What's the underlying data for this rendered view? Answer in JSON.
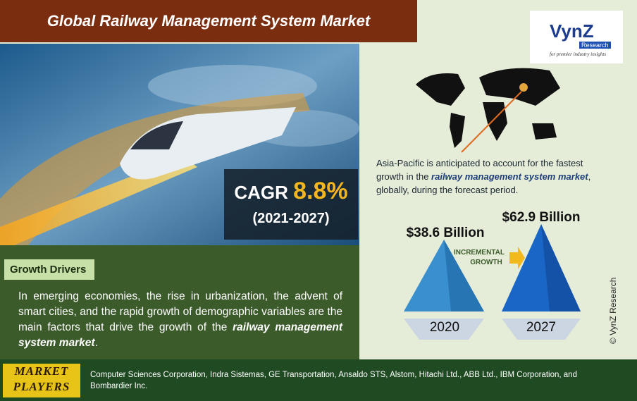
{
  "header": {
    "title": "Global Railway Management System Market"
  },
  "logo": {
    "name": "VynZ",
    "sub": "Research",
    "tagline": "for premier industry insights"
  },
  "cagr": {
    "label": "CAGR",
    "value": "8.8%",
    "period": "(2021-2027)"
  },
  "region": {
    "before": "Asia-Pacific is anticipated to account for the fastest growth in the ",
    "emphasis": "railway management system market",
    "after": ", globally, during the forecast period."
  },
  "growth": {
    "start": {
      "value": "$38.6 Billion",
      "year": "2020"
    },
    "end": {
      "value": "$62.9 Billion",
      "year": "2027"
    },
    "arrow": [
      "INCREMENTAL",
      "GROWTH"
    ]
  },
  "drivers": {
    "heading": "Growth Drivers",
    "before": "In emerging economies, the rise in urbanization, the advent of smart cities, and the rapid growth of demographic variables are the main factors that drive the growth of the ",
    "emphasis": "railway management system market",
    "after": "."
  },
  "players": {
    "heading": [
      "MARKET",
      "PLAYERS"
    ],
    "text": "Computer Sciences Corporation, Indra Sistemas, GE Transportation, Ansaldo STS, Alstom, Hitachi Ltd., ABB Ltd., IBM Corporation, and Bombardier Inc."
  },
  "copyright": "© VynZ Research"
}
